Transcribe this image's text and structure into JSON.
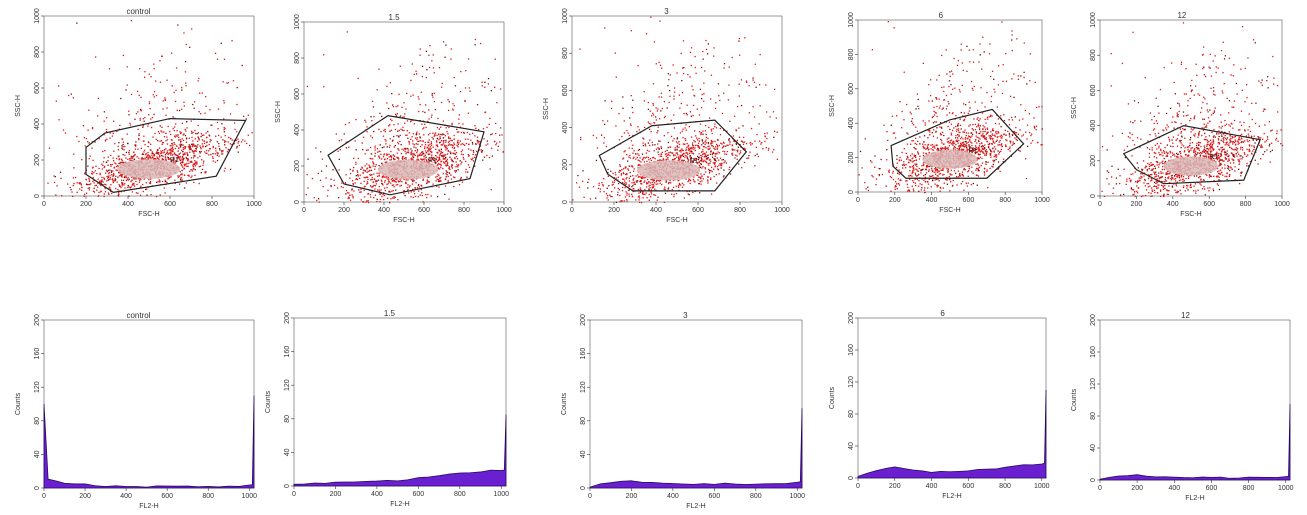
{
  "colors": {
    "dot": "#e01414",
    "dot_dark": "#7a0a0a",
    "core": "#d9b8b8",
    "gate": "#222222",
    "histogram_fill": "#6a1fd0",
    "histogram_edge": "#2a0a60",
    "axis": "#333333"
  },
  "chart_data": [
    {
      "type": "scatter",
      "title": "control",
      "xlabel": "FSC-H",
      "ylabel": "SSC-H",
      "xlim": [
        0,
        1000
      ],
      "ylim": [
        0,
        1000
      ],
      "xticks": [
        "0",
        "200",
        "400",
        "600",
        "800",
        "1000"
      ],
      "yticks": [
        "0",
        "200",
        "400",
        "600",
        "800",
        "1000"
      ],
      "gate_label": "R1",
      "gate": [
        [
          200,
          120
        ],
        [
          330,
          20
        ],
        [
          820,
          110
        ],
        [
          960,
          420
        ],
        [
          600,
          430
        ],
        [
          290,
          350
        ],
        [
          200,
          270
        ]
      ],
      "core_center": [
        520,
        170
      ],
      "spread": [
        330,
        110
      ]
    },
    {
      "type": "scatter",
      "title": "1.5",
      "xlabel": "FSC-H",
      "ylabel": "SSC-H",
      "xlim": [
        0,
        1000
      ],
      "ylim": [
        0,
        1000
      ],
      "xticks": [
        "0",
        "200",
        "400",
        "600",
        "800",
        "1000"
      ],
      "yticks": [
        "0",
        "200",
        "400",
        "600",
        "800",
        "1000"
      ],
      "gate_label": "R1",
      "gate": [
        [
          120,
          260
        ],
        [
          420,
          480
        ],
        [
          900,
          390
        ],
        [
          830,
          130
        ],
        [
          430,
          40
        ],
        [
          200,
          100
        ]
      ],
      "core_center": [
        540,
        200
      ],
      "spread": [
        320,
        140
      ]
    },
    {
      "type": "scatter",
      "title": "3",
      "xlabel": "FSC-H",
      "ylabel": "SSC-H",
      "xlim": [
        0,
        1000
      ],
      "ylim": [
        0,
        1000
      ],
      "xticks": [
        "0",
        "200",
        "400",
        "600",
        "800",
        "1000"
      ],
      "yticks": [
        "0",
        "200",
        "400",
        "600",
        "800",
        "1000"
      ],
      "gate_label": "R1",
      "gate": [
        [
          130,
          250
        ],
        [
          380,
          410
        ],
        [
          680,
          440
        ],
        [
          830,
          270
        ],
        [
          680,
          60
        ],
        [
          290,
          60
        ],
        [
          170,
          150
        ]
      ],
      "core_center": [
        480,
        190
      ],
      "spread": [
        320,
        120
      ]
    },
    {
      "type": "scatter",
      "title": "6",
      "xlabel": "FSC-H",
      "ylabel": "SSC-H",
      "xlim": [
        0,
        1000
      ],
      "ylim": [
        0,
        1000
      ],
      "xticks": [
        "0",
        "200",
        "400",
        "600",
        "800",
        "1000"
      ],
      "yticks": [
        "0",
        "200",
        "400",
        "600",
        "800",
        "1000"
      ],
      "gate_label": "R1",
      "gate": [
        [
          180,
          270
        ],
        [
          500,
          420
        ],
        [
          730,
          480
        ],
        [
          900,
          280
        ],
        [
          700,
          80
        ],
        [
          260,
          80
        ],
        [
          190,
          150
        ]
      ],
      "core_center": [
        520,
        210
      ],
      "spread": [
        320,
        140
      ]
    },
    {
      "type": "scatter",
      "title": "12",
      "xlabel": "FSC-H",
      "ylabel": "SSC-H",
      "xlim": [
        0,
        1000
      ],
      "ylim": [
        0,
        1000
      ],
      "xticks": [
        "0",
        "200",
        "400",
        "600",
        "800",
        "1000"
      ],
      "yticks": [
        "0",
        "200",
        "400",
        "600",
        "800",
        "1000"
      ],
      "gate_label": "R1",
      "gate": [
        [
          130,
          240
        ],
        [
          460,
          400
        ],
        [
          880,
          320
        ],
        [
          790,
          90
        ],
        [
          350,
          70
        ],
        [
          200,
          150
        ]
      ],
      "core_center": [
        520,
        190
      ],
      "spread": [
        340,
        130
      ]
    },
    {
      "type": "area",
      "title": "control",
      "xlabel": "FL2-H",
      "ylabel": "Counts",
      "xlim": [
        0,
        1023
      ],
      "ylim": [
        0,
        200
      ],
      "xticks": [
        "0",
        "200",
        "400",
        "600",
        "800",
        "1000"
      ],
      "yticks": [
        "0",
        "40",
        "80",
        "120",
        "160",
        "200"
      ],
      "x": [
        0,
        20,
        60,
        100,
        150,
        200,
        250,
        300,
        350,
        400,
        450,
        500,
        550,
        600,
        650,
        700,
        750,
        800,
        850,
        900,
        950,
        1000,
        1015,
        1023
      ],
      "y": [
        100,
        10,
        8,
        6,
        5,
        4,
        3,
        2,
        2,
        2,
        2,
        2,
        2,
        2,
        2,
        2,
        2,
        2,
        2,
        2,
        2,
        3,
        4,
        110
      ]
    },
    {
      "type": "area",
      "title": "1.5",
      "xlabel": "FL2-H",
      "ylabel": "Counts",
      "xlim": [
        0,
        1023
      ],
      "ylim": [
        0,
        200
      ],
      "xticks": [
        "0",
        "200",
        "400",
        "600",
        "800",
        "1000"
      ],
      "yticks": [
        "0",
        "40",
        "80",
        "120",
        "160",
        "200"
      ],
      "x": [
        0,
        50,
        100,
        150,
        200,
        250,
        300,
        350,
        400,
        450,
        500,
        550,
        600,
        650,
        700,
        750,
        800,
        850,
        900,
        950,
        1000,
        1015,
        1023
      ],
      "y": [
        2,
        3,
        3,
        4,
        4,
        4,
        5,
        5,
        5,
        6,
        7,
        8,
        10,
        11,
        12,
        14,
        15,
        16,
        17,
        18,
        19,
        20,
        85
      ]
    },
    {
      "type": "area",
      "title": "3",
      "xlabel": "FL2-H",
      "ylabel": "Counts",
      "xlim": [
        0,
        1023
      ],
      "ylim": [
        0,
        200
      ],
      "xticks": [
        "0",
        "200",
        "400",
        "600",
        "800",
        "1000"
      ],
      "yticks": [
        "0",
        "40",
        "80",
        "120",
        "160",
        "200"
      ],
      "x": [
        0,
        50,
        100,
        150,
        200,
        250,
        300,
        350,
        400,
        450,
        500,
        550,
        600,
        650,
        700,
        750,
        800,
        850,
        900,
        950,
        1000,
        1015,
        1023
      ],
      "y": [
        1,
        4,
        6,
        8,
        8,
        7,
        6,
        6,
        5,
        5,
        5,
        5,
        5,
        5,
        5,
        5,
        5,
        5,
        5,
        5,
        6,
        7,
        95
      ]
    },
    {
      "type": "area",
      "title": "6",
      "xlabel": "FL2-H",
      "ylabel": "Counts",
      "xlim": [
        0,
        1023
      ],
      "ylim": [
        0,
        200
      ],
      "xticks": [
        "0",
        "200",
        "400",
        "600",
        "800",
        "1000"
      ],
      "yticks": [
        "0",
        "40",
        "80",
        "120",
        "160",
        "200"
      ],
      "x": [
        0,
        50,
        100,
        150,
        200,
        250,
        300,
        350,
        400,
        450,
        500,
        550,
        600,
        650,
        700,
        750,
        800,
        850,
        900,
        950,
        1000,
        1015,
        1023
      ],
      "y": [
        2,
        6,
        9,
        12,
        13,
        12,
        10,
        9,
        8,
        8,
        8,
        8,
        9,
        10,
        11,
        12,
        14,
        15,
        16,
        17,
        18,
        18,
        110
      ]
    },
    {
      "type": "area",
      "title": "12",
      "xlabel": "FL2-H",
      "ylabel": "Counts",
      "xlim": [
        0,
        1023
      ],
      "ylim": [
        0,
        200
      ],
      "xticks": [
        "0",
        "200",
        "400",
        "600",
        "800",
        "1000"
      ],
      "yticks": [
        "0",
        "40",
        "80",
        "120",
        "160",
        "200"
      ],
      "x": [
        0,
        50,
        100,
        150,
        200,
        250,
        300,
        350,
        400,
        450,
        500,
        550,
        600,
        650,
        700,
        750,
        800,
        850,
        900,
        950,
        1000,
        1015,
        1023
      ],
      "y": [
        1,
        3,
        5,
        6,
        6,
        5,
        4,
        4,
        4,
        3,
        3,
        3,
        3,
        3,
        3,
        3,
        3,
        3,
        3,
        3,
        4,
        5,
        95
      ]
    }
  ]
}
